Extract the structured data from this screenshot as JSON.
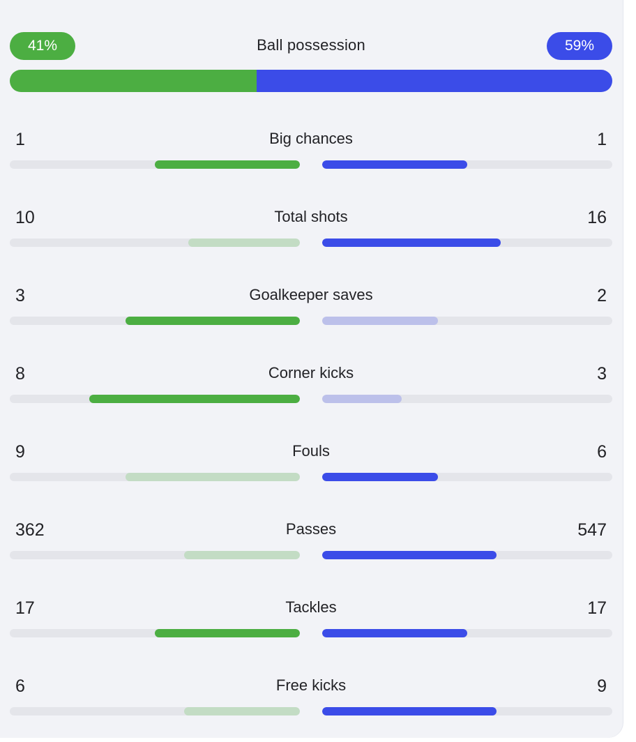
{
  "colors": {
    "home": "#4cae42",
    "away": "#3b4ce8",
    "home_light": "#c3dcc4",
    "away_light": "#bcc0ea"
  },
  "possession": {
    "label": "Ball possession",
    "home": "41%",
    "away": "59%",
    "home_fraction": 0.41
  },
  "stats": [
    {
      "label": "Big chances",
      "home": "1",
      "away": "1",
      "home_fraction": 0.5,
      "away_fraction": 0.5,
      "home_leads": true,
      "away_leads": true
    },
    {
      "label": "Total shots",
      "home": "10",
      "away": "16",
      "home_fraction": 0.385,
      "away_fraction": 0.615,
      "home_leads": false,
      "away_leads": true
    },
    {
      "label": "Goalkeeper saves",
      "home": "3",
      "away": "2",
      "home_fraction": 0.6,
      "away_fraction": 0.4,
      "home_leads": true,
      "away_leads": false
    },
    {
      "label": "Corner kicks",
      "home": "8",
      "away": "3",
      "home_fraction": 0.727,
      "away_fraction": 0.273,
      "home_leads": true,
      "away_leads": false
    },
    {
      "label": "Fouls",
      "home": "9",
      "away": "6",
      "home_fraction": 0.6,
      "away_fraction": 0.4,
      "home_leads": false,
      "away_leads": true
    },
    {
      "label": "Passes",
      "home": "362",
      "away": "547",
      "home_fraction": 0.398,
      "away_fraction": 0.602,
      "home_leads": false,
      "away_leads": true
    },
    {
      "label": "Tackles",
      "home": "17",
      "away": "17",
      "home_fraction": 0.5,
      "away_fraction": 0.5,
      "home_leads": true,
      "away_leads": true
    },
    {
      "label": "Free kicks",
      "home": "6",
      "away": "9",
      "home_fraction": 0.4,
      "away_fraction": 0.6,
      "home_leads": false,
      "away_leads": true
    }
  ]
}
